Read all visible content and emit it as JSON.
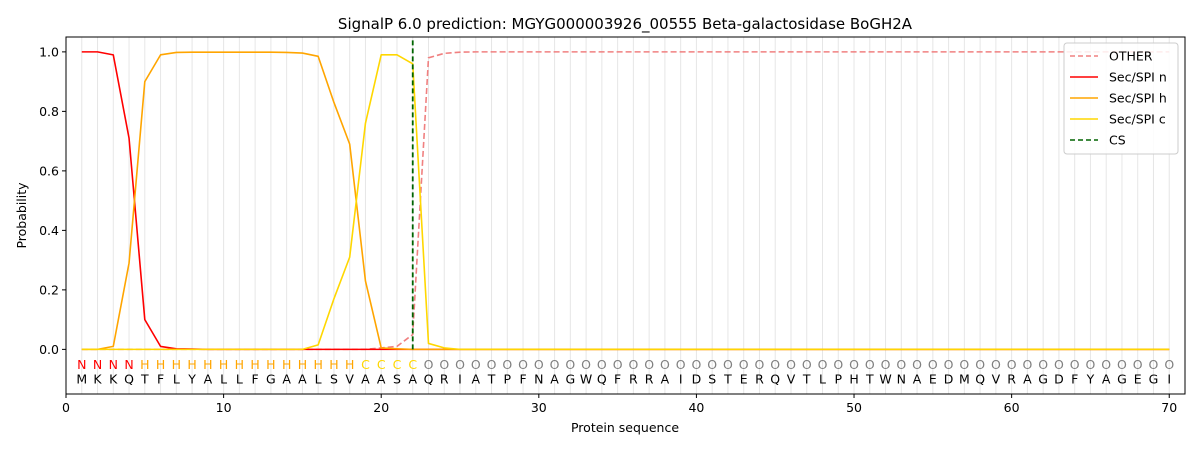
{
  "chart_data": {
    "type": "line",
    "title": "SignalP 6.0 prediction: MGYG000003926_00555 Beta-galactosidase BoGH2A",
    "xlabel": "Protein sequence",
    "ylabel": "Probability",
    "xlim": [
      0,
      71
    ],
    "ylim": [
      -0.15,
      1.05
    ],
    "x_ticks": [
      0,
      10,
      20,
      30,
      40,
      50,
      60,
      70
    ],
    "y_ticks": [
      0.0,
      0.2,
      0.4,
      0.6,
      0.8,
      1.0
    ],
    "grid": "vertical lines at every residue",
    "legend_position": "top-right",
    "sequence": "MKKQTFLYALLFGAALSVAASAQRIATPFNAGWQFRRAIDSTERQVTLPHTWNAEDMQVRAGDFYAGEGI",
    "labels": "NNNNHHHHHHHHHHHHHHCCCCOOOOOOOOOOOOOOOOOOOOOOOOOOOOOOOOOOOOOOOOOOOOOOOO",
    "label_colors": {
      "N": "#ff0000",
      "H": "#ffa500",
      "C": "#ffd700",
      "O": "#808080"
    },
    "cleavage_site": 22,
    "series": [
      {
        "name": "OTHER",
        "color": "#f08080",
        "style": "dashed",
        "values": [
          0,
          0,
          0,
          0,
          0,
          0,
          0,
          0,
          0,
          0,
          0,
          0,
          0,
          0,
          0,
          0,
          0,
          0,
          0,
          0.005,
          0.01,
          0.05,
          0.98,
          0.995,
          0.999,
          1,
          1,
          1,
          1,
          1,
          1,
          1,
          1,
          1,
          1,
          1,
          1,
          1,
          1,
          1,
          1,
          1,
          1,
          1,
          1,
          1,
          1,
          1,
          1,
          1,
          1,
          1,
          1,
          1,
          1,
          1,
          1,
          1,
          1,
          1,
          1,
          1,
          1,
          1,
          1,
          1,
          1,
          1,
          1,
          1
        ]
      },
      {
        "name": "Sec/SPI n",
        "color": "#ff0000",
        "style": "solid",
        "values": [
          1.0,
          1.0,
          0.99,
          0.71,
          0.1,
          0.01,
          0.002,
          0.001,
          0,
          0,
          0,
          0,
          0,
          0,
          0,
          0,
          0,
          0,
          0,
          0,
          0,
          0,
          0,
          0,
          0,
          0,
          0,
          0,
          0,
          0,
          0,
          0,
          0,
          0,
          0,
          0,
          0,
          0,
          0,
          0,
          0,
          0,
          0,
          0,
          0,
          0,
          0,
          0,
          0,
          0,
          0,
          0,
          0,
          0,
          0,
          0,
          0,
          0,
          0,
          0,
          0,
          0,
          0,
          0,
          0,
          0,
          0,
          0,
          0,
          0
        ]
      },
      {
        "name": "Sec/SPI h",
        "color": "#ffa500",
        "style": "solid",
        "values": [
          0,
          0,
          0.01,
          0.29,
          0.9,
          0.99,
          0.998,
          0.999,
          0.999,
          0.999,
          0.999,
          0.999,
          0.999,
          0.998,
          0.996,
          0.985,
          0.83,
          0.69,
          0.23,
          0.005,
          0.002,
          0,
          0,
          0,
          0,
          0,
          0,
          0,
          0,
          0,
          0,
          0,
          0,
          0,
          0,
          0,
          0,
          0,
          0,
          0,
          0,
          0,
          0,
          0,
          0,
          0,
          0,
          0,
          0,
          0,
          0,
          0,
          0,
          0,
          0,
          0,
          0,
          0,
          0,
          0,
          0,
          0,
          0,
          0,
          0,
          0,
          0,
          0,
          0,
          0
        ]
      },
      {
        "name": "Sec/SPI c",
        "color": "#ffd700",
        "style": "solid",
        "values": [
          0,
          0,
          0,
          0,
          0,
          0,
          0,
          0,
          0,
          0,
          0,
          0,
          0,
          0,
          0,
          0.015,
          0.17,
          0.31,
          0.76,
          0.99,
          0.99,
          0.96,
          0.02,
          0.005,
          0,
          0,
          0,
          0,
          0,
          0,
          0,
          0,
          0,
          0,
          0,
          0,
          0,
          0,
          0,
          0,
          0,
          0,
          0,
          0,
          0,
          0,
          0,
          0,
          0,
          0,
          0,
          0,
          0,
          0,
          0,
          0,
          0,
          0,
          0,
          0,
          0,
          0,
          0,
          0,
          0,
          0,
          0,
          0,
          0,
          0
        ]
      },
      {
        "name": "CS",
        "color": "#006400",
        "style": "dashed"
      }
    ]
  }
}
